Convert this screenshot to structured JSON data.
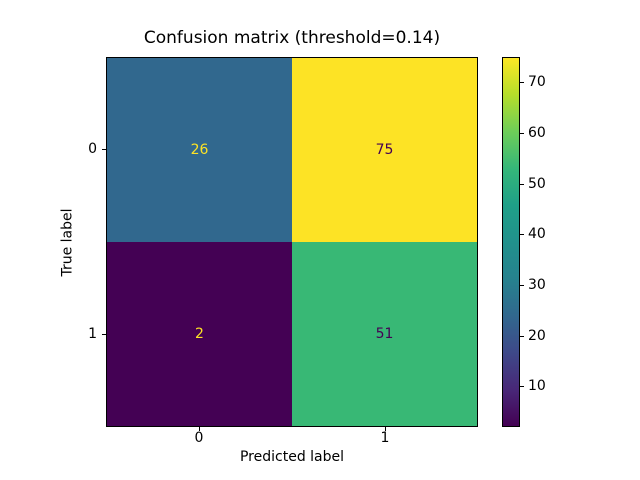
{
  "chart_data": {
    "type": "heatmap",
    "title": "Confusion matrix (threshold=0.14)",
    "xlabel": "Predicted label",
    "ylabel": "True label",
    "x_tick_labels": [
      "0",
      "1"
    ],
    "y_tick_labels": [
      "0",
      "1"
    ],
    "matrix": [
      [
        26,
        75
      ],
      [
        2,
        51
      ]
    ],
    "vmin": 2,
    "vmax": 75,
    "colormap": "viridis",
    "grid": false,
    "legend_position": "right-colorbar",
    "colorbar_ticks": [
      10,
      20,
      30,
      40,
      50,
      60,
      70
    ],
    "colorbar_gradient": [
      "#440154",
      "#482878",
      "#3e4989",
      "#31688e",
      "#26828e",
      "#21918c",
      "#1fa088",
      "#35b779",
      "#6ece58",
      "#b5de2b",
      "#fde725"
    ],
    "cell_colors": [
      [
        "#31688e",
        "#fde325"
      ],
      [
        "#440154",
        "#38b875"
      ]
    ],
    "cell_text_colors": [
      [
        "#fde325",
        "#440154"
      ],
      [
        "#fde325",
        "#440154"
      ]
    ]
  }
}
